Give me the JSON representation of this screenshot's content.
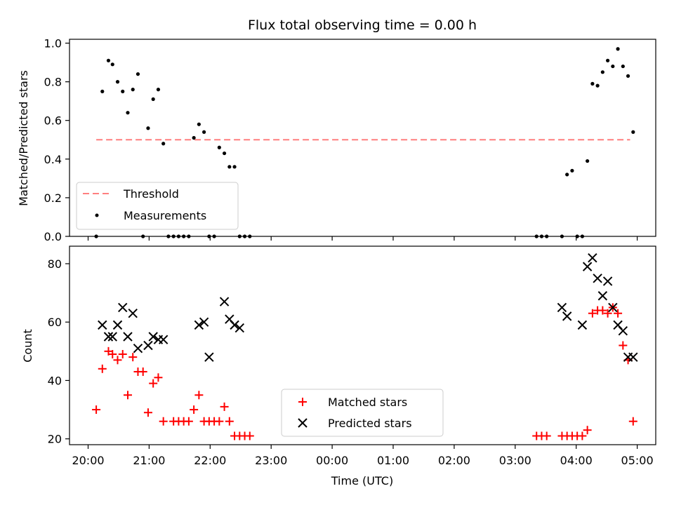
{
  "chart_data": [
    {
      "type": "scatter",
      "title": "Flux total observing time = 0.00 h",
      "xlabel": "",
      "ylabel": "Matched/Predicted stars",
      "ylim": [
        0,
        1.02
      ],
      "yticks": [
        0.0,
        0.2,
        0.4,
        0.6,
        0.8,
        1.0
      ],
      "ytick_labels": [
        "0.0",
        "0.2",
        "0.4",
        "0.6",
        "0.8",
        "1.0"
      ],
      "legend": {
        "position": "lower-left",
        "entries": [
          "Threshold",
          "Measurements"
        ]
      },
      "threshold": {
        "name": "Threshold",
        "y": 0.5,
        "x_start": "20:08",
        "x_end": "04:53",
        "color": "#ff7f7f"
      },
      "series": [
        {
          "name": "Measurements",
          "color": "#000000",
          "x": [
            "20:08",
            "20:14",
            "20:20",
            "20:24",
            "20:29",
            "20:34",
            "20:39",
            "20:44",
            "20:49",
            "20:54",
            "20:59",
            "21:04",
            "21:09",
            "21:14",
            "21:19",
            "21:24",
            "21:29",
            "21:34",
            "21:39",
            "21:44",
            "21:49",
            "21:54",
            "21:59",
            "22:04",
            "22:09",
            "22:14",
            "22:19",
            "22:24",
            "22:29",
            "22:34",
            "22:39",
            "03:21",
            "03:26",
            "03:31",
            "03:46",
            "03:51",
            "03:56",
            "04:01",
            "04:06",
            "04:11",
            "04:16",
            "04:21",
            "04:26",
            "04:31",
            "04:36",
            "04:41",
            "04:46",
            "04:51",
            "04:56"
          ],
          "y": [
            0.0,
            0.75,
            0.91,
            0.89,
            0.8,
            0.75,
            0.64,
            0.76,
            0.84,
            0.0,
            0.56,
            0.71,
            0.76,
            0.48,
            0.0,
            0.0,
            0.0,
            0.0,
            0.0,
            0.51,
            0.58,
            0.54,
            0.0,
            0.0,
            0.46,
            0.43,
            0.36,
            0.36,
            0.0,
            0.0,
            0.0,
            0.0,
            0.0,
            0.0,
            0.0,
            0.32,
            0.34,
            0.0,
            0.0,
            0.39,
            0.79,
            0.78,
            0.85,
            0.91,
            0.88,
            0.97,
            0.88,
            0.83,
            0.54
          ]
        }
      ]
    },
    {
      "type": "scatter",
      "title": "",
      "xlabel": "Time (UTC)",
      "ylabel": "Count",
      "ylim": [
        18,
        86
      ],
      "yticks": [
        20,
        40,
        60,
        80
      ],
      "ytick_labels": [
        "20",
        "40",
        "60",
        "80"
      ],
      "xticks": [
        "20:00",
        "21:00",
        "22:00",
        "23:00",
        "00:00",
        "01:00",
        "02:00",
        "03:00",
        "04:00",
        "05:00"
      ],
      "legend": {
        "position": "lower-center",
        "entries": [
          "Matched stars",
          "Predicted stars"
        ]
      },
      "series": [
        {
          "name": "Matched stars",
          "marker": "+",
          "color": "#ff0000",
          "x": [
            "20:08",
            "20:14",
            "20:20",
            "20:24",
            "20:29",
            "20:34",
            "20:39",
            "20:44",
            "20:49",
            "20:54",
            "20:59",
            "21:04",
            "21:09",
            "21:14",
            "21:24",
            "21:29",
            "21:34",
            "21:39",
            "21:44",
            "21:49",
            "21:54",
            "21:59",
            "22:04",
            "22:09",
            "22:14",
            "22:19",
            "22:24",
            "22:29",
            "22:34",
            "22:39",
            "03:21",
            "03:26",
            "03:31",
            "03:46",
            "03:51",
            "03:56",
            "04:01",
            "04:06",
            "04:11",
            "04:16",
            "04:21",
            "04:26",
            "04:31",
            "04:36",
            "04:41",
            "04:46",
            "04:51",
            "04:56"
          ],
          "y": [
            30,
            44,
            50,
            49,
            47,
            49,
            35,
            48,
            43,
            43,
            29,
            39,
            41,
            26,
            26,
            26,
            26,
            26,
            30,
            35,
            26,
            26,
            26,
            26,
            31,
            26,
            21,
            21,
            21,
            21,
            21,
            21,
            21,
            21,
            21,
            21,
            21,
            21,
            23,
            63,
            64,
            64,
            63,
            65,
            63,
            52,
            47,
            26
          ]
        },
        {
          "name": "Predicted stars",
          "marker": "x",
          "color": "#000000",
          "x": [
            "20:14",
            "20:20",
            "20:24",
            "20:29",
            "20:34",
            "20:39",
            "20:44",
            "20:49",
            "20:59",
            "21:04",
            "21:09",
            "21:14",
            "21:49",
            "21:54",
            "21:59",
            "22:14",
            "22:19",
            "22:24",
            "22:29",
            "03:46",
            "03:51",
            "04:06",
            "04:11",
            "04:16",
            "04:21",
            "04:26",
            "04:31",
            "04:36",
            "04:41",
            "04:46",
            "04:51",
            "04:56"
          ],
          "y": [
            59,
            55,
            55,
            59,
            65,
            55,
            63,
            51,
            52,
            55,
            54,
            54,
            59,
            60,
            48,
            67,
            61,
            59,
            58,
            65,
            62,
            59,
            79,
            82,
            75,
            69,
            74,
            65,
            59,
            57,
            48,
            48
          ]
        }
      ]
    }
  ]
}
